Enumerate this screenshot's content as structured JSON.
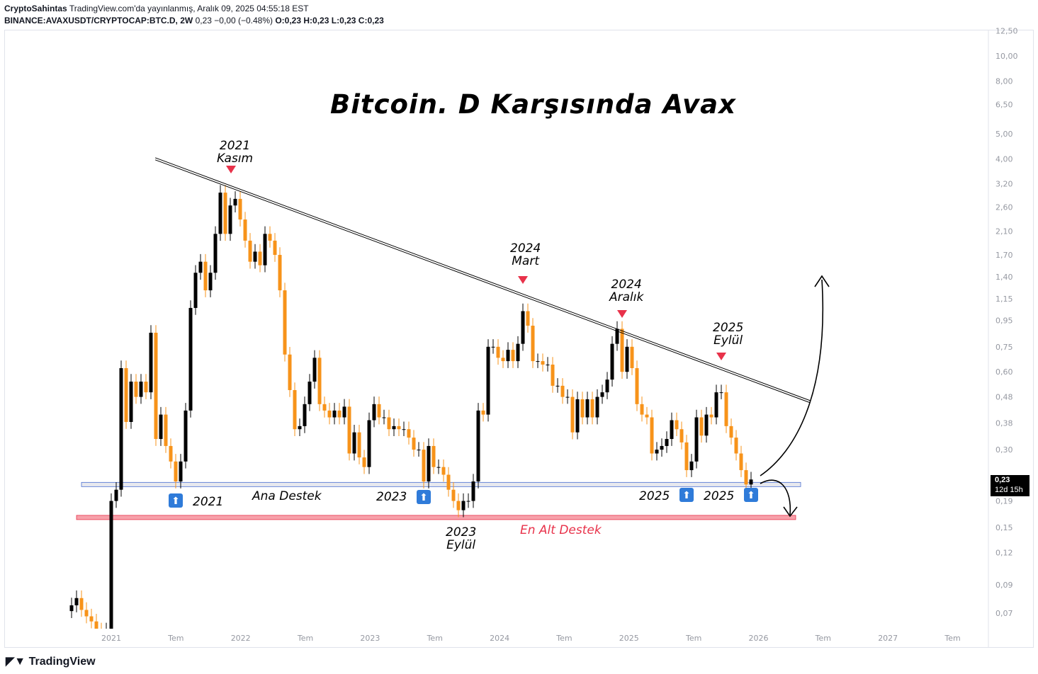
{
  "header": {
    "author": "CryptoSahintas",
    "published": "TradingView.com'da yayınlanmış, Aralık 09, 2025 04:55:18 EST",
    "symbol": "BINANCE:AVAXUSDT/CRYPTOCAP:BTC.D, 2W",
    "change": "0,23 −0,00 (−0.48%)",
    "o": "O:0,23",
    "h": "H:0,23",
    "l": "L:0,23",
    "c": "C:0,23"
  },
  "title": "Bitcoin. D Karşısında Avax",
  "annotations": {
    "peak2021": [
      "2021",
      "Kasım"
    ],
    "peak2024m": [
      "2024",
      "Mart"
    ],
    "peak2024a": [
      "2024",
      "Aralık"
    ],
    "peak2025": [
      "2025",
      "Eylül"
    ],
    "sup2021": "2021",
    "ana": "Ana Destek",
    "sup2023": "2023",
    "sup2025a": "2025",
    "sup2025b": "2025",
    "low2023": [
      "2023",
      "Eylül"
    ],
    "enalt": "En Alt Destek"
  },
  "price_box": {
    "price": "0,23",
    "countdown": "12d 15h"
  },
  "logo": "TradingView",
  "colors": {
    "up": "#000000",
    "down": "#f7931a",
    "support": "#d1d4dc",
    "bottom_support": "#f7a1aa",
    "marker": "#e8324a",
    "arrow_badge": "#2f7bd9"
  },
  "chart_data": {
    "type": "candlestick",
    "scale": "log",
    "interval": "2W",
    "start": 2020.75,
    "closes": [
      0.075,
      0.08,
      0.072,
      0.068,
      0.065,
      0.06,
      0.055,
      0.06,
      0.19,
      0.21,
      0.62,
      0.384,
      0.55,
      0.48,
      0.55,
      0.5,
      0.85,
      0.33,
      0.41,
      0.31,
      0.27,
      0.226,
      0.27,
      0.425,
      1.06,
      1.45,
      1.6,
      1.24,
      1.45,
      2.05,
      2.96,
      2.05,
      2.64,
      2.8,
      2.33,
      1.93,
      1.6,
      1.75,
      1.55,
      2.05,
      1.93,
      1.7,
      1.24,
      0.7,
      0.51,
      0.36,
      0.37,
      0.45,
      0.55,
      0.68,
      0.45,
      0.425,
      0.4,
      0.425,
      0.4,
      0.44,
      0.29,
      0.35,
      0.28,
      0.257,
      0.39,
      0.45,
      0.4,
      0.4,
      0.36,
      0.37,
      0.36,
      0.36,
      0.334,
      0.3,
      0.3,
      0.226,
      0.31,
      0.257,
      0.257,
      0.24,
      0.21,
      0.19,
      0.175,
      0.19,
      0.19,
      0.226,
      0.425,
      0.41,
      0.75,
      0.75,
      0.68,
      0.66,
      0.73,
      0.66,
      0.77,
      1.03,
      0.905,
      0.66,
      0.66,
      0.64,
      0.64,
      0.53,
      0.53,
      0.48,
      0.48,
      0.35,
      0.47,
      0.4,
      0.47,
      0.4,
      0.48,
      0.5,
      0.56,
      0.77,
      0.88,
      0.6,
      0.75,
      0.62,
      0.45,
      0.41,
      0.4,
      0.29,
      0.3,
      0.31,
      0.33,
      0.39,
      0.36,
      0.32,
      0.25,
      0.27,
      0.4,
      0.34,
      0.41,
      0.4,
      0.5,
      0.5,
      0.37,
      0.334,
      0.29,
      0.25,
      0.22,
      0.23
    ],
    "yticks": [
      "12,50",
      "10,00",
      "8,00",
      "6,50",
      "5,00",
      "4,00",
      "3,20",
      "2,60",
      "2,10",
      "1,70",
      "1,40",
      "1,15",
      "0,95",
      "0,75",
      "0,60",
      "0,48",
      "0,38",
      "0,30",
      "0,19",
      "0,15",
      "0,12",
      "0,09",
      "0,07"
    ],
    "xticks": [
      {
        "t": 2021,
        "label": "2021"
      },
      {
        "t": 2021.5,
        "label": "Tem"
      },
      {
        "t": 2022,
        "label": "2022"
      },
      {
        "t": 2022.5,
        "label": "Tem"
      },
      {
        "t": 2023,
        "label": "2023"
      },
      {
        "t": 2023.5,
        "label": "Tem"
      },
      {
        "t": 2024,
        "label": "2024"
      },
      {
        "t": 2024.5,
        "label": "Tem"
      },
      {
        "t": 2025,
        "label": "2025"
      },
      {
        "t": 2025.5,
        "label": "Tem"
      },
      {
        "t": 2026,
        "label": "2026"
      },
      {
        "t": 2026.5,
        "label": "Tem"
      },
      {
        "t": 2027,
        "label": "2027"
      },
      {
        "t": 2027.5,
        "label": "Tem"
      }
    ],
    "trendline": {
      "from": {
        "t": 2021.34,
        "p": 4.0
      },
      "to": {
        "t": 2026.4,
        "p": 0.46
      }
    },
    "supports": [
      {
        "name": "Ana Destek",
        "p": 0.22
      },
      {
        "name": "En Alt Destek",
        "p": 0.164
      }
    ],
    "ylim": [
      0.06,
      13
    ]
  }
}
